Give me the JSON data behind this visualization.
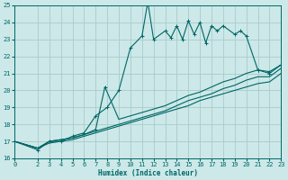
{
  "bg_color": "#cce8e8",
  "grid_color": "#aacccc",
  "line_color": "#006666",
  "xlabel": "Humidex (Indice chaleur)",
  "xlim": [
    0,
    23
  ],
  "ylim": [
    16,
    25
  ],
  "xticks": [
    0,
    2,
    3,
    4,
    5,
    6,
    7,
    8,
    9,
    10,
    11,
    12,
    13,
    14,
    15,
    16,
    17,
    18,
    19,
    20,
    21,
    22,
    23
  ],
  "yticks": [
    16,
    17,
    18,
    19,
    20,
    21,
    22,
    23,
    24,
    25
  ],
  "s1_x": [
    0,
    2,
    3,
    4,
    5,
    6,
    7,
    8,
    9,
    10,
    11,
    11.5,
    12,
    13,
    13.5,
    14,
    14.5,
    15,
    15.5,
    16,
    16.5,
    17,
    17.5,
    18,
    19,
    19.5,
    20,
    21,
    22,
    23
  ],
  "s1_y": [
    17,
    16.5,
    17,
    17,
    17.3,
    17.5,
    18.5,
    19,
    20,
    22.5,
    23.2,
    25.2,
    23.0,
    23.5,
    23.1,
    23.8,
    23.0,
    24.1,
    23.3,
    24.0,
    22.8,
    23.8,
    23.5,
    23.8,
    23.3,
    23.5,
    23.2,
    21.2,
    21.0,
    21.5
  ],
  "s2_x": [
    0,
    2,
    3,
    4,
    5,
    6,
    7,
    7.8,
    9,
    10,
    11,
    12,
    13,
    14,
    15,
    16,
    17,
    18,
    19,
    20,
    21,
    22,
    23
  ],
  "s2_y": [
    17,
    16.6,
    17,
    17.1,
    17.2,
    17.4,
    17.7,
    20.2,
    18.3,
    18.5,
    18.7,
    18.9,
    19.1,
    19.4,
    19.7,
    19.9,
    20.2,
    20.5,
    20.7,
    21.0,
    21.2,
    21.1,
    21.5
  ],
  "s3_x": [
    0,
    2,
    3,
    4,
    5,
    6,
    7,
    8,
    9,
    10,
    11,
    12,
    13,
    14,
    15,
    16,
    17,
    18,
    19,
    20,
    21,
    22,
    23
  ],
  "s3_y": [
    17,
    16.6,
    17,
    17.1,
    17.2,
    17.4,
    17.6,
    17.8,
    18.0,
    18.2,
    18.4,
    18.6,
    18.8,
    19.1,
    19.4,
    19.6,
    19.8,
    20.1,
    20.3,
    20.6,
    20.8,
    20.8,
    21.3
  ],
  "s4_x": [
    0,
    2,
    3,
    4,
    5,
    6,
    7,
    8,
    9,
    10,
    11,
    12,
    13,
    14,
    15,
    16,
    17,
    18,
    19,
    20,
    21,
    22,
    23
  ],
  "s4_y": [
    17,
    16.6,
    16.9,
    17.0,
    17.1,
    17.3,
    17.5,
    17.7,
    17.9,
    18.1,
    18.3,
    18.5,
    18.7,
    18.9,
    19.1,
    19.4,
    19.6,
    19.8,
    20.0,
    20.2,
    20.4,
    20.5,
    21.0
  ]
}
